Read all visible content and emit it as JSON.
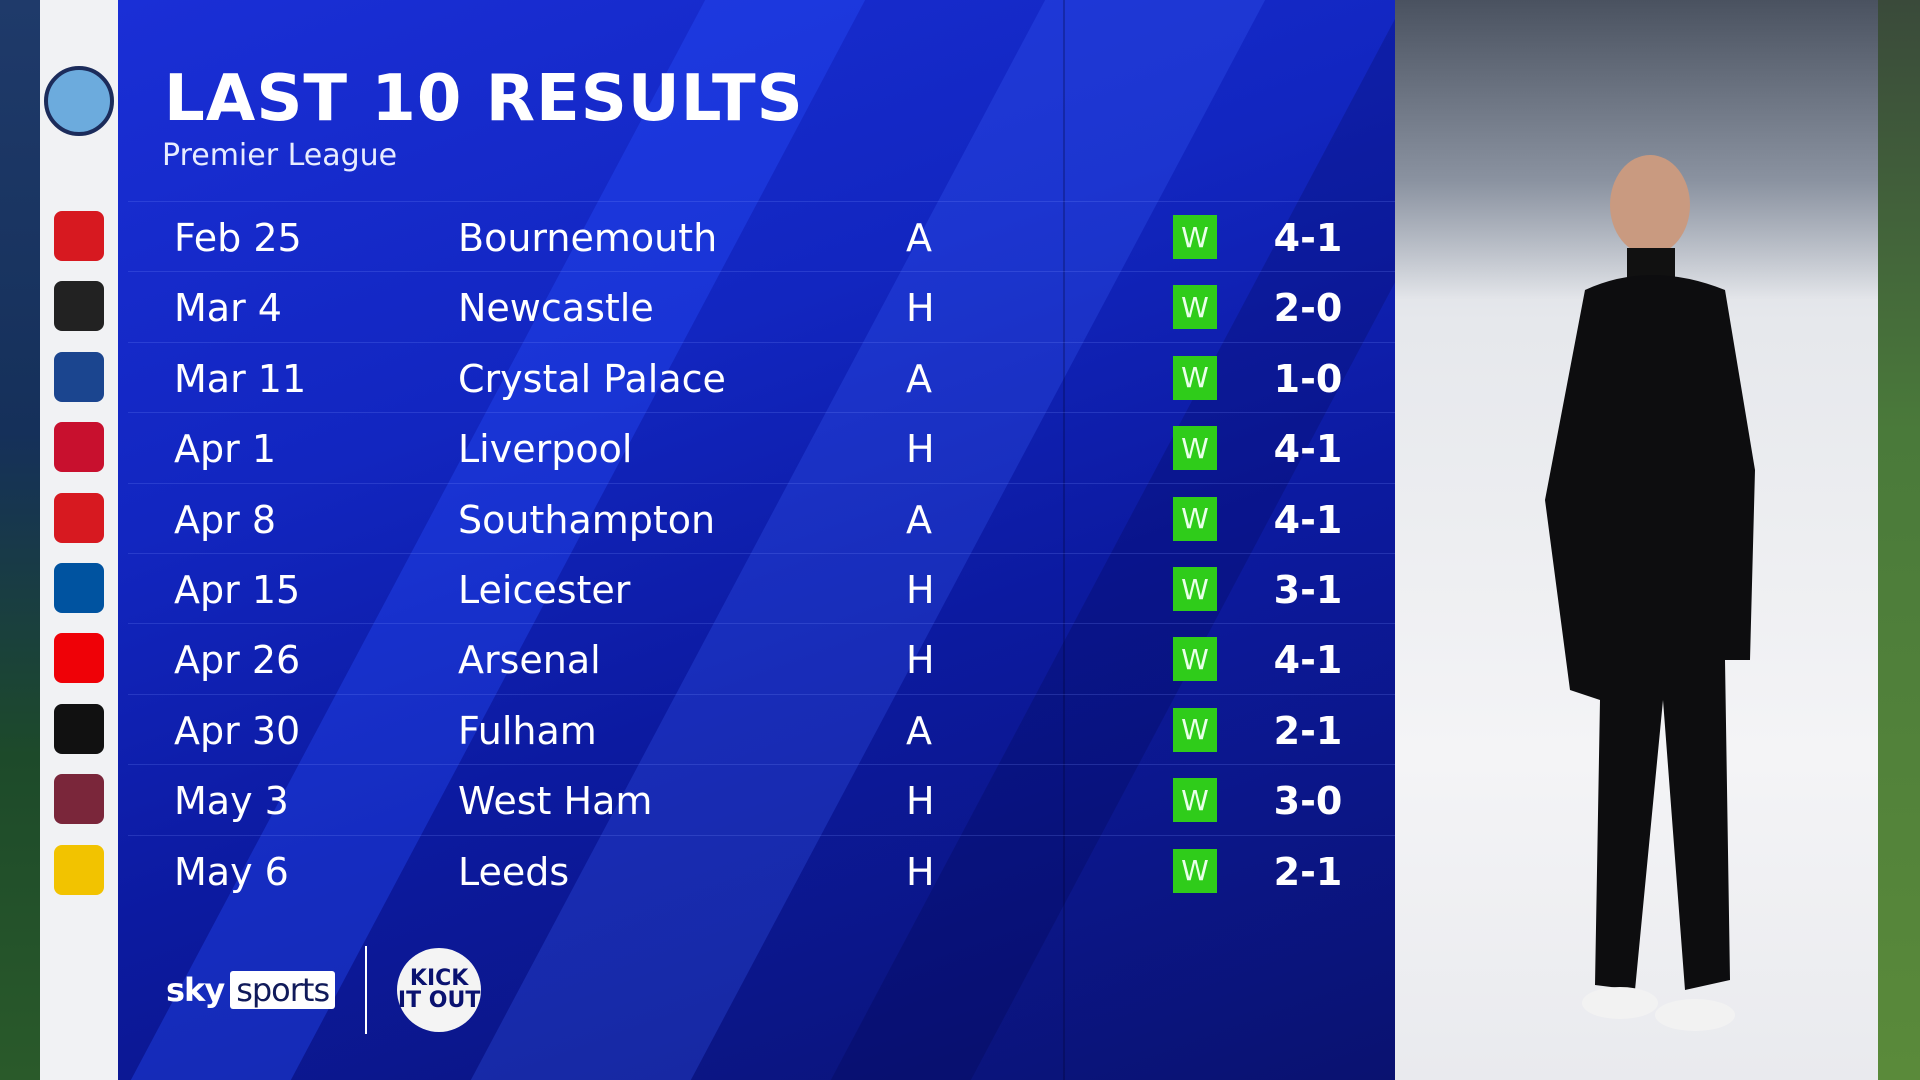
{
  "header": {
    "title": "LAST 10 RESULTS",
    "subtitle": "Premier League"
  },
  "team_crest": {
    "name": "Manchester City",
    "icon": "manchester-city-crest"
  },
  "colors": {
    "panel": "#1226c0",
    "win_badge": "#2fcc1a",
    "crest_column": "#f1f2f4"
  },
  "results": [
    {
      "date": "Feb 25",
      "opponent": "Bournemouth",
      "venue": "A",
      "result": "W",
      "score": "4-1",
      "crest_color": "#d71920"
    },
    {
      "date": "Mar 4",
      "opponent": "Newcastle",
      "venue": "H",
      "result": "W",
      "score": "2-0",
      "crest_color": "#222222"
    },
    {
      "date": "Mar 11",
      "opponent": "Crystal Palace",
      "venue": "A",
      "result": "W",
      "score": "1-0",
      "crest_color": "#1b458f"
    },
    {
      "date": "Apr 1",
      "opponent": "Liverpool",
      "venue": "H",
      "result": "W",
      "score": "4-1",
      "crest_color": "#c8102e"
    },
    {
      "date": "Apr 8",
      "opponent": "Southampton",
      "venue": "A",
      "result": "W",
      "score": "4-1",
      "crest_color": "#d71920"
    },
    {
      "date": "Apr 15",
      "opponent": "Leicester",
      "venue": "H",
      "result": "W",
      "score": "3-1",
      "crest_color": "#0053a0"
    },
    {
      "date": "Apr 26",
      "opponent": "Arsenal",
      "venue": "H",
      "result": "W",
      "score": "4-1",
      "crest_color": "#ef0107"
    },
    {
      "date": "Apr 30",
      "opponent": "Fulham",
      "venue": "A",
      "result": "W",
      "score": "2-1",
      "crest_color": "#111111"
    },
    {
      "date": "May 3",
      "opponent": "West Ham",
      "venue": "H",
      "result": "W",
      "score": "3-0",
      "crest_color": "#7a263a"
    },
    {
      "date": "May 6",
      "opponent": "Leeds",
      "venue": "H",
      "result": "W",
      "score": "2-1",
      "crest_color": "#f2c300"
    }
  ],
  "branding": {
    "sky": "sky",
    "sports": "sports",
    "kick_it_out": "KICK IT OUT"
  }
}
